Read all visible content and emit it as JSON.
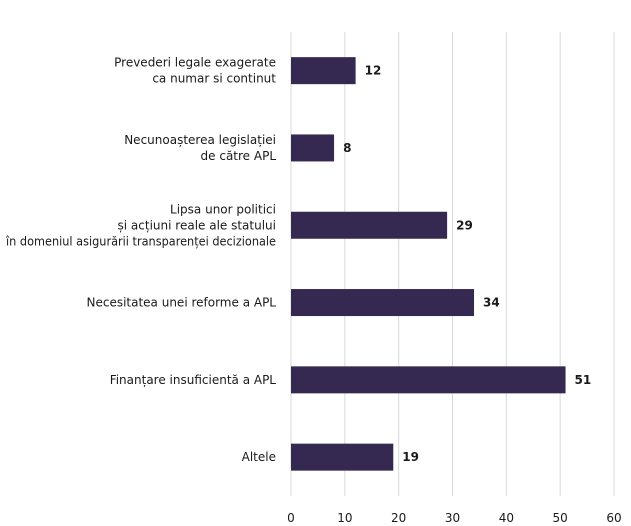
{
  "chart_data": {
    "type": "bar",
    "orientation": "horizontal",
    "categories": [
      [
        "Prevederi legale exagerate",
        "ca numar si continut"
      ],
      [
        "Necunoașterea legislației",
        "de către APL"
      ],
      [
        "Lipsa unor politici",
        "și acțiuni reale ale statului",
        "în domeniul asigurării transparenței decizionale"
      ],
      [
        "Necesitatea unei reforme a APL"
      ],
      [
        "Finanțare insuficientă a APL"
      ],
      [
        "Altele"
      ]
    ],
    "values": [
      12,
      8,
      29,
      34,
      51,
      19
    ],
    "value_labels": [
      "12",
      "8",
      "29",
      "34",
      "51",
      "19"
    ],
    "xlim": [
      0,
      60
    ],
    "xticks": [
      "0",
      "10",
      "20",
      "30",
      "40",
      "50",
      "60"
    ],
    "grid": "vertical",
    "bar_color": "#352851",
    "grid_color": "#d9d9d9"
  }
}
